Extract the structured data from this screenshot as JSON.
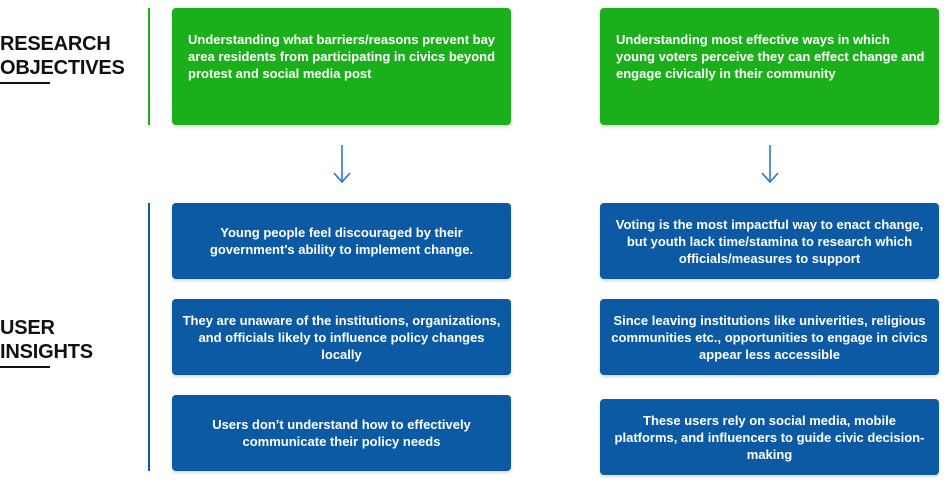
{
  "colors": {
    "objective": "#1bb01b",
    "insight": "#0b5aa3",
    "objective_line": "#1bb01b",
    "insight_line": "#0b5aa3",
    "arrow": "#2a79c4"
  },
  "research": {
    "title_line1": "RESEARCH",
    "title_line2": "OBJECTIVES",
    "objectives": [
      "Understanding what barriers/reasons prevent bay area residents from participating in civics beyond protest and social media post",
      "Understanding most effective ways in which young voters perceive they can effect change and engage civically in their community"
    ]
  },
  "insights": {
    "title_line1": "USER",
    "title_line2": "INSIGHTS",
    "left": [
      "Young people feel discouraged by their government's ability to implement change.",
      "They are unaware of the institutions, organizations, and officials likely to influence policy changes locally",
      "Users don’t understand how to effectively communicate their policy needs"
    ],
    "right": [
      "Voting is the most impactful way to enact change, but youth lack time/stamina to research which officials/measures to support",
      "Since leaving institutions like univerities, religious communities etc., opportunities to engage in civics appear less accessible",
      "These users rely on social media, mobile platforms, and influencers to guide civic decision-making"
    ]
  }
}
